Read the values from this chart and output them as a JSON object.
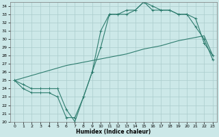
{
  "xlabel": "Humidex (Indice chaleur)",
  "x": [
    0,
    1,
    2,
    3,
    4,
    5,
    6,
    7,
    8,
    9,
    10,
    11,
    12,
    13,
    14,
    15,
    16,
    17,
    18,
    19,
    20,
    21,
    22,
    23
  ],
  "line1": [
    25,
    24.5,
    24,
    24,
    24,
    24,
    21.5,
    20,
    23,
    26,
    31,
    33,
    33,
    33.5,
    33.5,
    34.5,
    33.5,
    33.5,
    33.5,
    33,
    33,
    32.5,
    29.5,
    28
  ],
  "line2": [
    25,
    24,
    23.5,
    23.5,
    23.5,
    23,
    20.5,
    20.5,
    23,
    26,
    29,
    33,
    33,
    33,
    33.5,
    34.5,
    34,
    33.5,
    33.5,
    33,
    33,
    31.5,
    30,
    27.5
  ],
  "line3": [
    25,
    25.3,
    25.6,
    25.9,
    26.2,
    26.5,
    26.8,
    27.0,
    27.2,
    27.4,
    27.6,
    27.8,
    28.0,
    28.2,
    28.5,
    28.8,
    29.0,
    29.2,
    29.5,
    29.8,
    30.0,
    30.2,
    30.4,
    28.0
  ],
  "ylim": [
    20,
    34.5
  ],
  "xlim": [
    -0.5,
    23.5
  ],
  "yticks": [
    20,
    21,
    22,
    23,
    24,
    25,
    26,
    27,
    28,
    29,
    30,
    31,
    32,
    33,
    34
  ],
  "xticks": [
    0,
    1,
    2,
    3,
    4,
    5,
    6,
    7,
    8,
    9,
    10,
    11,
    12,
    13,
    14,
    15,
    16,
    17,
    18,
    19,
    20,
    21,
    22,
    23
  ],
  "line_color": "#2d7c6e",
  "bg_color": "#cce8e8",
  "grid_color": "#aacccc"
}
